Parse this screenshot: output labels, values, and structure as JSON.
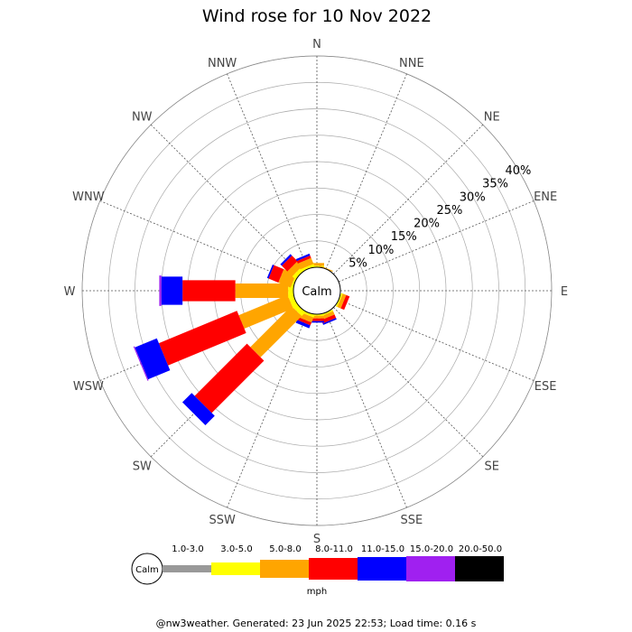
{
  "chart_data": {
    "type": "windrose",
    "title": "Wind rose for 10 Nov 2022",
    "calm_label": "Calm",
    "directions": [
      "N",
      "NNE",
      "NE",
      "ENE",
      "E",
      "ESE",
      "SE",
      "SSE",
      "S",
      "SSW",
      "SW",
      "WSW",
      "W",
      "WNW",
      "NW",
      "NNW"
    ],
    "radial_ticks": [
      5,
      10,
      15,
      20,
      25,
      30,
      35,
      40
    ],
    "radial_tick_labels": [
      "5%",
      "10%",
      "15%",
      "20%",
      "25%",
      "30%",
      "35%",
      "40%"
    ],
    "rmax": 40,
    "speed_bins": [
      {
        "label": "1.0-3.0",
        "color": "#999999"
      },
      {
        "label": "3.0-5.0",
        "color": "#ffff00"
      },
      {
        "label": "5.0-8.0",
        "color": "#ffa500"
      },
      {
        "label": "8.0-11.0",
        "color": "#ff0000"
      },
      {
        "label": "11.0-15.0",
        "color": "#0000ff"
      },
      {
        "label": "15.0-20.0",
        "color": "#a020f0"
      },
      {
        "label": "20.0-50.0",
        "color": "#000000"
      }
    ],
    "units": "mph",
    "data": {
      "N": [
        0,
        0.3,
        0.5,
        0,
        0,
        0,
        0
      ],
      "NNE": [
        0,
        0,
        0.2,
        0,
        0,
        0,
        0
      ],
      "NE": [
        0,
        0,
        0,
        0,
        0,
        0,
        0
      ],
      "ENE": [
        0,
        0,
        0,
        0,
        0,
        0,
        0
      ],
      "E": [
        0,
        0,
        0,
        0,
        0,
        0,
        0
      ],
      "ESE": [
        0,
        0.3,
        0.7,
        0.7,
        0,
        0,
        0
      ],
      "SE": [
        0,
        0,
        0,
        0,
        0,
        0,
        0
      ],
      "SSE": [
        0,
        0.3,
        0.7,
        0.7,
        0.3,
        0,
        0
      ],
      "S": [
        0,
        0.3,
        0.5,
        0.5,
        0.3,
        0,
        0
      ],
      "SSW": [
        0,
        0.5,
        1.0,
        0.6,
        0.6,
        0,
        0
      ],
      "SW": [
        0,
        1.0,
        11.0,
        14.0,
        2.5,
        0,
        0
      ],
      "WSW": [
        0,
        1.0,
        10.0,
        16.0,
        4.5,
        0.2,
        0
      ],
      "W": [
        0,
        1.0,
        10.0,
        10.0,
        4.0,
        0.4,
        0
      ],
      "WNW": [
        0,
        0.4,
        2.5,
        2.0,
        0.3,
        0,
        0
      ],
      "NW": [
        0,
        0.8,
        1.3,
        1.5,
        0.4,
        0,
        0
      ],
      "NNW": [
        0,
        0.5,
        1.2,
        0.5,
        0.4,
        0,
        0
      ]
    }
  },
  "footer": "@nw3weather. Generated: 23 Jun 2025 22:53; Load time: 0.16 s"
}
